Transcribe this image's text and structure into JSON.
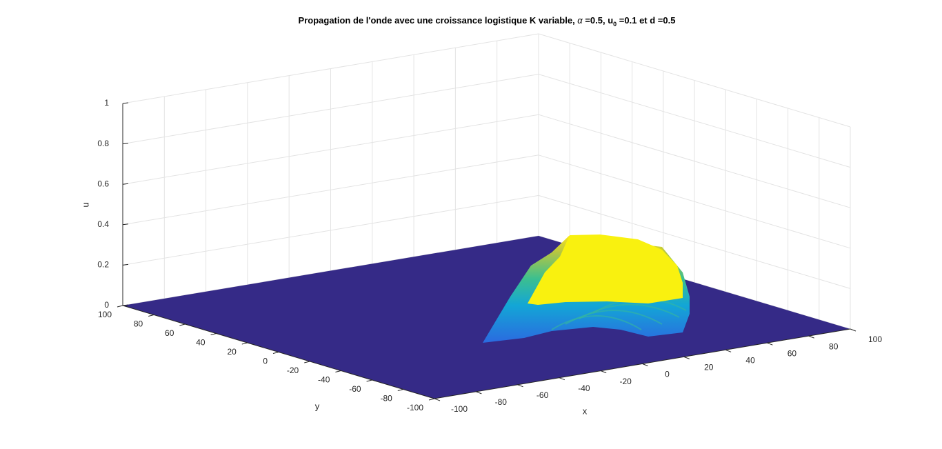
{
  "chart_data": {
    "type": "surface",
    "title_parts": [
      "Propagation de l'onde avec une croissance logistique K variable, ",
      "α",
      " =0.5, u",
      "0",
      " =0.1 et d =0.5"
    ],
    "xlabel": "x",
    "ylabel": "y",
    "zlabel": "u",
    "xlim": [
      -100,
      100
    ],
    "xticks": [
      -100,
      -80,
      -60,
      -40,
      -20,
      0,
      20,
      40,
      60,
      80,
      100
    ],
    "ylim": [
      -100,
      100
    ],
    "yticks": [
      -100,
      -80,
      -60,
      -40,
      -20,
      0,
      20,
      40,
      60,
      80,
      100
    ],
    "zlim": [
      0,
      1
    ],
    "zticks": [
      0,
      0.2,
      0.4,
      0.6,
      0.8,
      1
    ],
    "grid": true,
    "floor_color": "#352a87"
  }
}
